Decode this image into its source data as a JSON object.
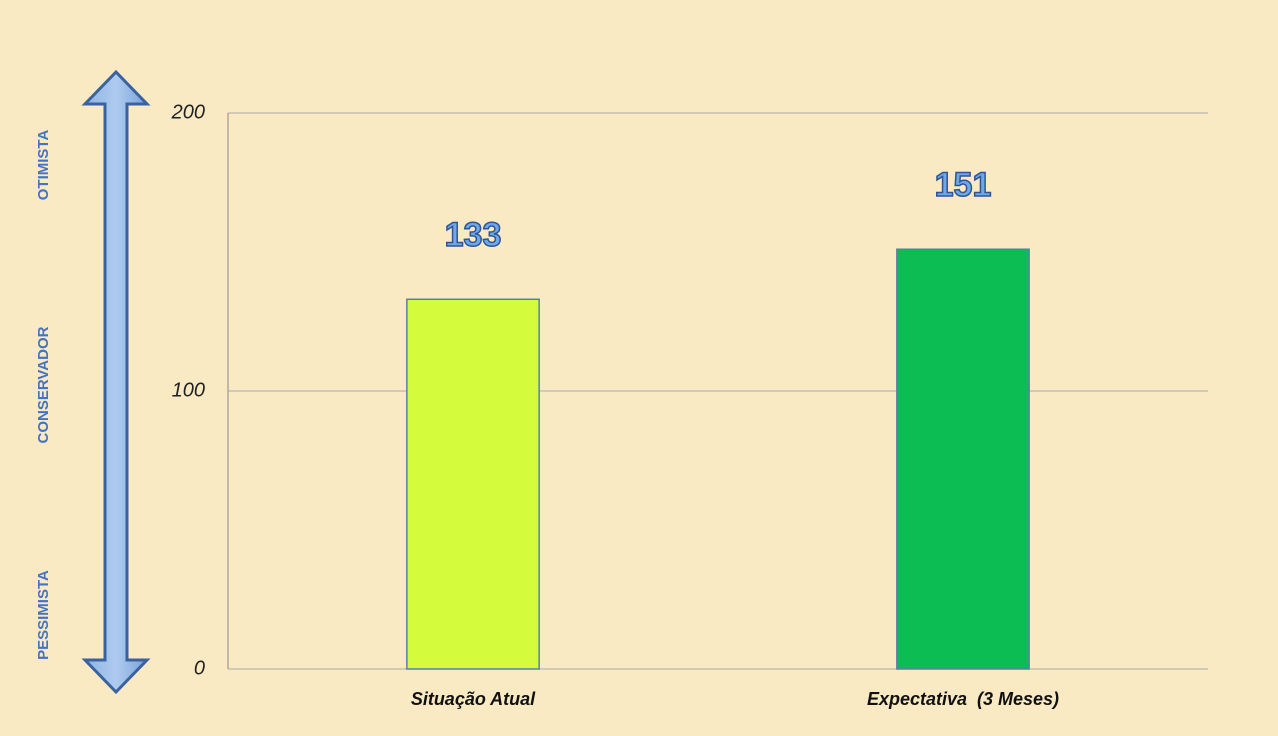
{
  "chart_data": {
    "type": "bar",
    "categories": [
      "Situação Atual",
      "Expectativa  (3 Meses)"
    ],
    "values": [
      133,
      151
    ],
    "colors": [
      "#d4fb3c",
      "#0bbd52"
    ],
    "ylim": [
      0,
      200
    ],
    "yticks": [
      0,
      100,
      200
    ],
    "grid": true,
    "annotations": [
      "OTIMISTA",
      "CONSERVADOR",
      "PESSIMISTA"
    ]
  }
}
